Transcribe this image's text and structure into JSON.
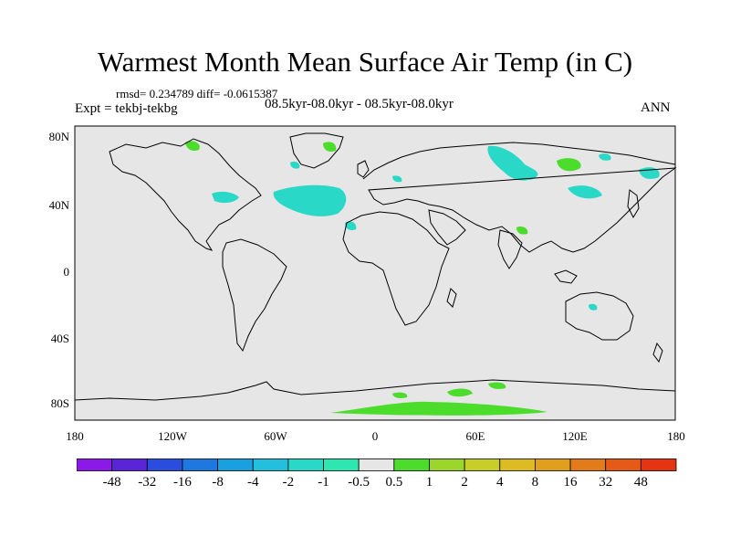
{
  "title": "Warmest Month Mean Surface Air Temp (in C)",
  "stats": "rmsd= 0.234789  diff= -0.0615387",
  "experiment": "Expt = tekbj-tekbg",
  "period": "08.5kyr-08.0kyr - 08.5kyr-08.0kyr",
  "season": "ANN",
  "map": {
    "ocean_color": "#e6e6e6",
    "lat_ticks": [
      "80N",
      "40N",
      "0",
      "40S",
      "80S"
    ],
    "lon_ticks": [
      "180",
      "120W",
      "60W",
      "0",
      "60E",
      "120E",
      "180"
    ]
  },
  "colorbar": {
    "colors": [
      "#8b1ae8",
      "#5a24d8",
      "#2a4de0",
      "#1f78e0",
      "#18a0e0",
      "#22c0dc",
      "#2ad8c8",
      "#2ee6b0",
      "#e6e6e6",
      "#4cdc2c",
      "#9cd62a",
      "#c8ce28",
      "#dcbc22",
      "#e0a01e",
      "#e27c1a",
      "#e45a16",
      "#e43412"
    ],
    "labels": [
      "-48",
      "-32",
      "-16",
      "-8",
      "-4",
      "-2",
      "-1",
      "-0.5",
      "0.5",
      "1",
      "2",
      "4",
      "8",
      "16",
      "32",
      "48"
    ]
  }
}
